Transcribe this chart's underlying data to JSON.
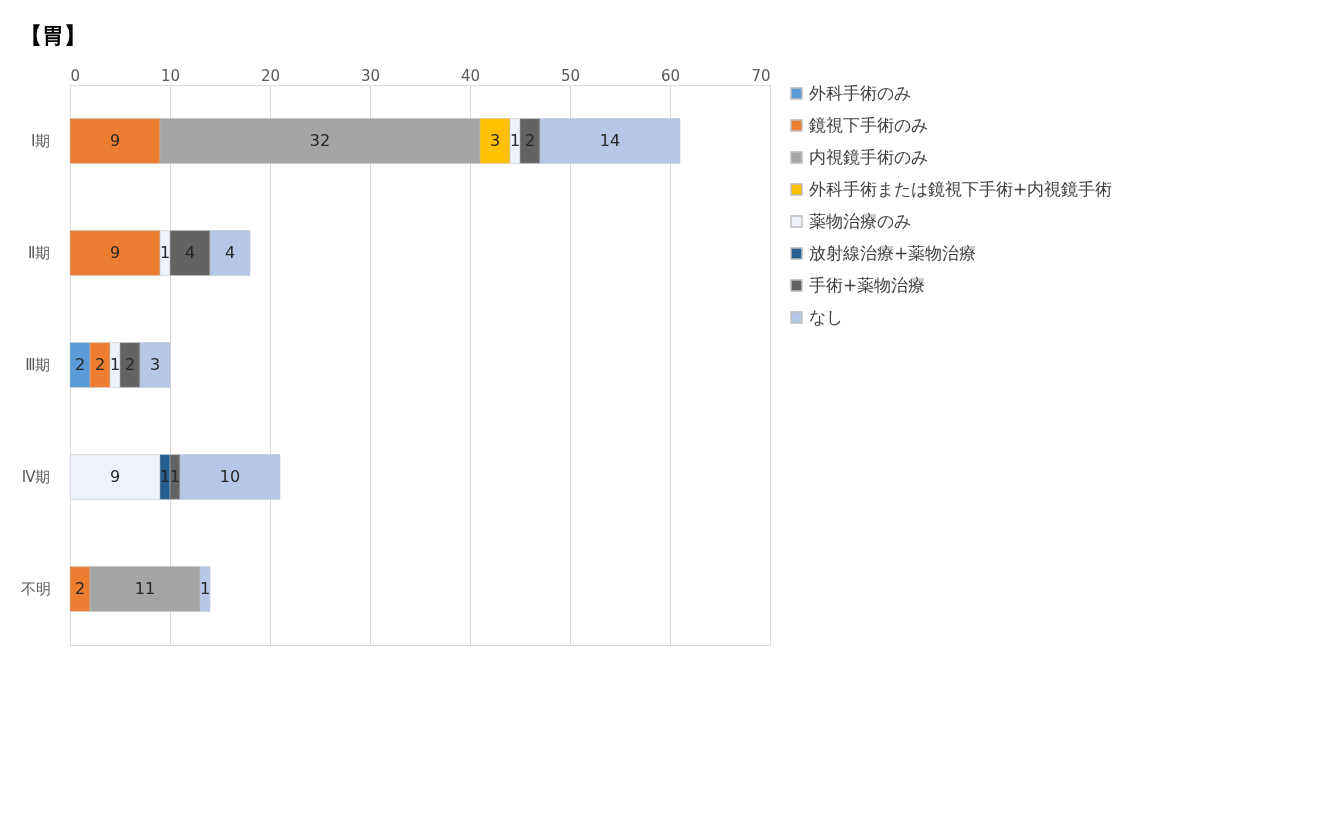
{
  "chart_data": {
    "type": "bar",
    "title": "【胃】",
    "orientation": "horizontal",
    "stacked": true,
    "data_labels": true,
    "grid": "x",
    "legend": "right",
    "categories": [
      "Ⅰ期",
      "Ⅱ期",
      "Ⅲ期",
      "Ⅳ期",
      "不明"
    ],
    "xlim": [
      0,
      70
    ],
    "xticks": [
      0,
      10,
      20,
      30,
      40,
      50,
      60,
      70
    ],
    "series": [
      {
        "name": "外科手術のみ",
        "color": "#5b9bd5",
        "values": [
          null,
          null,
          2,
          null,
          null
        ]
      },
      {
        "name": "鏡視下手術のみ",
        "color": "#ed7d31",
        "values": [
          9,
          9,
          2,
          null,
          2
        ]
      },
      {
        "name": "内視鏡手術のみ",
        "color": "#a5a5a5",
        "values": [
          32,
          null,
          null,
          null,
          11
        ]
      },
      {
        "name": "外科手術または鏡視下手術+内視鏡手術",
        "color": "#ffc000",
        "values": [
          3,
          null,
          null,
          null,
          null
        ]
      },
      {
        "name": "薬物治療のみ",
        "color": "#eef3fb",
        "values": [
          1,
          1,
          1,
          9,
          null
        ]
      },
      {
        "name": "放射線治療+薬物治療",
        "color": "#255e91",
        "values": [
          null,
          null,
          null,
          1,
          null
        ]
      },
      {
        "name": "手術+薬物治療",
        "color": "#636363",
        "values": [
          2,
          4,
          2,
          1,
          null
        ]
      },
      {
        "name": "なし",
        "color": "#b4c7e7",
        "values": [
          14,
          4,
          3,
          10,
          1
        ]
      }
    ]
  }
}
